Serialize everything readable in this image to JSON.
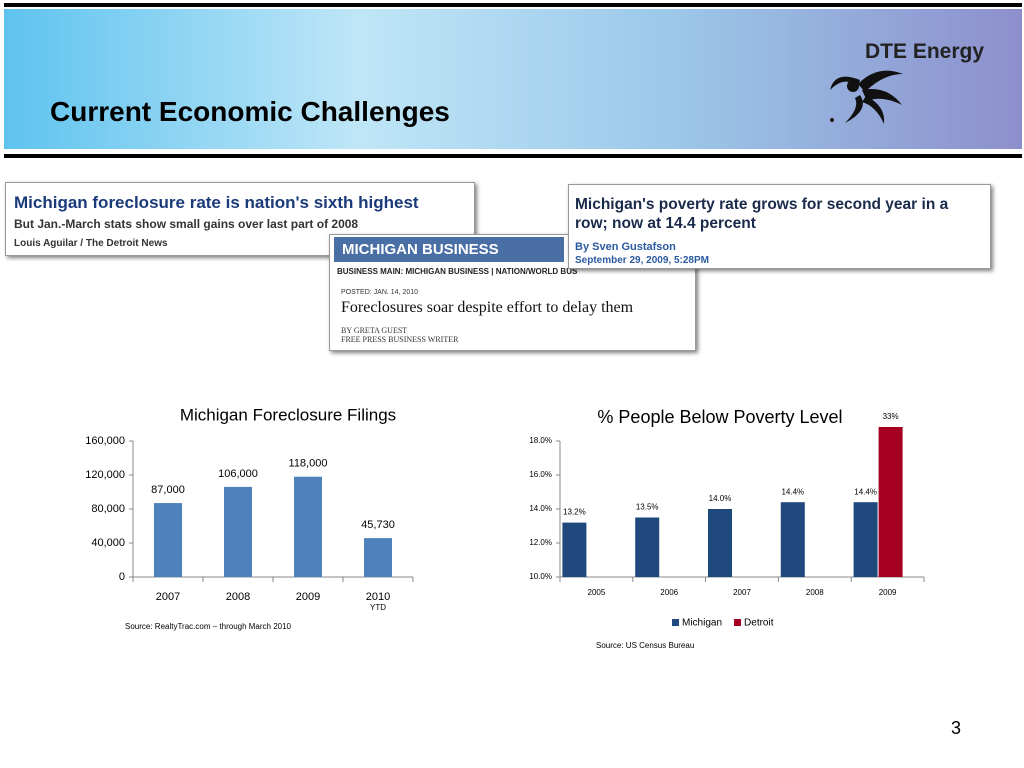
{
  "header": {
    "title": "Current Economic Challenges",
    "logo": "DTE Energy"
  },
  "clippings": [
    {
      "headline": "Michigan foreclosure rate is nation's sixth highest",
      "subhead": "But Jan.-March stats show small gains over last part of 2008",
      "byline": "Louis Aguilar / The Detroit News"
    },
    {
      "section": "MICHIGAN BUSINESS",
      "nav": "BUSINESS MAIN: MICHIGAN BUSINESS | NATION/WORLD BUS",
      "posted": "POSTED: JAN. 14, 2010",
      "headline": "Foreclosures soar despite effort to delay them",
      "byline": "BY GRETA GUEST",
      "role": "FREE PRESS BUSINESS WRITER"
    },
    {
      "headline": "Michigan's poverty rate grows for second year in a row; now at 14.4 percent",
      "byline_prefix": "By",
      "author": "Sven Gustafson",
      "date": "September 29, 2009, 5:28PM"
    }
  ],
  "chart_data": [
    {
      "type": "bar",
      "title": "Michigan Foreclosure Filings",
      "categories": [
        "2007",
        "2008",
        "2009",
        "2010"
      ],
      "category_notes": [
        null,
        null,
        null,
        "YTD"
      ],
      "values": [
        87000,
        106000,
        118000,
        45730
      ],
      "value_labels": [
        "87,000",
        "106,000",
        "118,000",
        "45,730"
      ],
      "color": "#4f81bd",
      "ylim": [
        0,
        160000
      ],
      "yticks": [
        0,
        {
          "value": 40000,
          "label": "40,000"
        },
        {
          "value": 80000,
          "label": "80,000"
        },
        {
          "value": 120000,
          "label": "120,000"
        },
        {
          "value": 160000,
          "label": "160,000"
        }
      ],
      "source": "Source: RealtyTrac.com – through March 2010"
    },
    {
      "type": "bar",
      "title": "%  People Below Poverty Level",
      "categories": [
        "2005",
        "2006",
        "2007",
        "2008",
        "2009"
      ],
      "series": [
        {
          "name": "Michigan",
          "color": "#1f497d",
          "values": [
            13.2,
            13.5,
            14.0,
            14.4,
            14.4
          ],
          "value_labels": [
            "13.2%",
            "13.5%",
            "14.0%",
            "14.4%",
            "14.4%"
          ]
        },
        {
          "name": "Detroit",
          "color": "#a50021",
          "values": [
            null,
            null,
            null,
            null,
            33
          ],
          "value_labels": [
            null,
            null,
            null,
            null,
            "33%"
          ]
        }
      ],
      "ylim": [
        10,
        18
      ],
      "yticks": [
        {
          "value": 10,
          "label": "10.0%"
        },
        {
          "value": 12,
          "label": "12.0%"
        },
        {
          "value": 14,
          "label": "14.0%"
        },
        {
          "value": 16,
          "label": "16.0%"
        },
        {
          "value": 18,
          "label": "18.0%"
        }
      ],
      "legend": "bottom",
      "source": "Source: US Census Bureau"
    }
  ],
  "page_number": "3"
}
